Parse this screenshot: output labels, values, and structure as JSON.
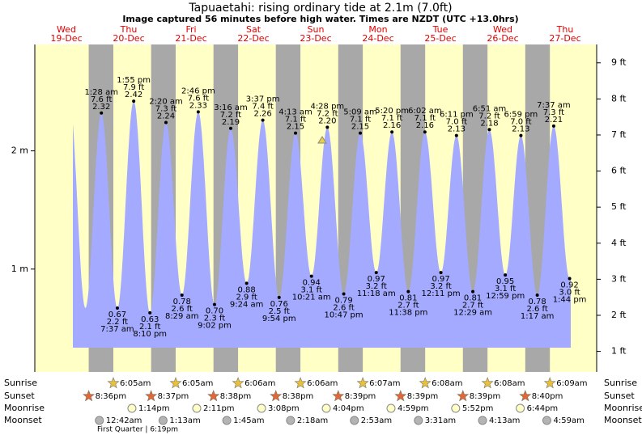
{
  "chart_data": {
    "type": "tide",
    "title": "Tapuaetahi: rising  ordinary tide at 2.1m (7.0ft)",
    "subtitle": "Image captured 56 minutes before high water. Times are NZDT (UTC +13.0hrs)",
    "ylim": [
      0.13,
      2.9
    ],
    "yticks": [
      {
        "value": 1,
        "label": "1 m"
      },
      {
        "value": 2,
        "label": "2 m"
      }
    ],
    "y2lim": [
      0.43,
      9.51
    ],
    "y2ticks": [
      {
        "value": 1,
        "label": "1 ft"
      },
      {
        "value": 2,
        "label": "2 ft"
      },
      {
        "value": 3,
        "label": "3 ft"
      },
      {
        "value": 4,
        "label": "4 ft"
      },
      {
        "value": 5,
        "label": "5 ft"
      },
      {
        "value": 6,
        "label": "6 ft"
      },
      {
        "value": 7,
        "label": "7 ft"
      },
      {
        "value": 8,
        "label": "8 ft"
      },
      {
        "value": 9,
        "label": "9 ft"
      }
    ],
    "row_labels": [
      "Sunrise",
      "Sunset",
      "Moonrise",
      "Moonset"
    ],
    "moon_phase": "First Quarter | 6:19pm",
    "days": [
      {
        "weekday": "Wed",
        "date": "19-Dec",
        "tides": [],
        "sunrise": null,
        "sunset": "8:36pm",
        "moonrise": null,
        "moonset": null
      },
      {
        "weekday": "Thu",
        "date": "20-Dec",
        "tides": [
          {
            "time": "1:28 am",
            "ft": "7.6 ft",
            "m": 2.32
          },
          {
            "time": "7:37 am",
            "ft": "2.2 ft",
            "m": 0.67
          },
          {
            "time": "1:55 pm",
            "ft": "7.9 ft",
            "m": 2.42
          },
          {
            "time": "8:10 pm",
            "ft": "2.1 ft",
            "m": 0.63
          }
        ],
        "sunrise": "6:05am",
        "sunset": "8:37pm",
        "moonrise": "1:14pm",
        "moonset": "12:42am"
      },
      {
        "weekday": "Fri",
        "date": "21-Dec",
        "tides": [
          {
            "time": "2:20 am",
            "ft": "7.3 ft",
            "m": 2.24
          },
          {
            "time": "8:29 am",
            "ft": "2.6 ft",
            "m": 0.78
          },
          {
            "time": "2:46 pm",
            "ft": "7.6 ft",
            "m": 2.33
          },
          {
            "time": "9:02 pm",
            "ft": "2.3 ft",
            "m": 0.7,
            "m_label": "0.70"
          }
        ],
        "sunrise": "6:05am",
        "sunset": "8:38pm",
        "moonrise": "2:11pm",
        "moonset": "1:13am"
      },
      {
        "weekday": "Sat",
        "date": "22-Dec",
        "tides": [
          {
            "time": "3:16 am",
            "ft": "7.2 ft",
            "m": 2.19
          },
          {
            "time": "9:24 am",
            "ft": "2.9 ft",
            "m": 0.88
          },
          {
            "time": "3:37 pm",
            "ft": "7.4 ft",
            "m": 2.26
          },
          {
            "time": "9:54 pm",
            "ft": "2.5 ft",
            "m": 0.76
          }
        ],
        "sunrise": "6:06am",
        "sunset": "8:38pm",
        "moonrise": "3:08pm",
        "moonset": "1:45am"
      },
      {
        "weekday": "Sun",
        "date": "23-Dec",
        "tides": [
          {
            "time": "4:13 am",
            "ft": "7.1 ft",
            "m": 2.15
          },
          {
            "time": "10:21 am",
            "ft": "3.1 ft",
            "m": 0.94
          },
          {
            "time": "4:28 pm",
            "ft": "7.2 ft",
            "m": 2.2,
            "m_label": "2.20"
          },
          {
            "time": "10:47 pm",
            "ft": "2.6 ft",
            "m": 0.79
          }
        ],
        "sunrise": "6:06am",
        "sunset": "8:39pm",
        "moonrise": "4:04pm",
        "moonset": "2:18am"
      },
      {
        "weekday": "Mon",
        "date": "24-Dec",
        "tides": [
          {
            "time": "5:09 am",
            "ft": "7.1 ft",
            "m": 2.15
          },
          {
            "time": "11:18 am",
            "ft": "3.2 ft",
            "m": 0.97
          },
          {
            "time": "5:20 pm",
            "ft": "7.1 ft",
            "m": 2.16
          },
          {
            "time": "11:38 pm",
            "ft": "2.7 ft",
            "m": 0.81
          }
        ],
        "sunrise": "6:07am",
        "sunset": "8:39pm",
        "moonrise": "4:59pm",
        "moonset": "2:53am"
      },
      {
        "weekday": "Tue",
        "date": "25-Dec",
        "tides": [
          {
            "time": "6:02 am",
            "ft": "7.1 ft",
            "m": 2.16
          },
          {
            "time": "12:11 pm",
            "ft": "3.2 ft",
            "m": 0.97
          },
          {
            "time": "6:11 pm",
            "ft": "7.0 ft",
            "m": 2.13
          }
        ],
        "sunrise": "6:08am",
        "sunset": "8:39pm",
        "moonrise": "5:52pm",
        "moonset": "3:31am"
      },
      {
        "weekday": "Wed",
        "date": "26-Dec",
        "tides": [
          {
            "time": "12:29 am",
            "ft": "2.7 ft",
            "m": 0.81
          },
          {
            "time": "6:51 am",
            "ft": "7.2 ft",
            "m": 2.18
          },
          {
            "time": "12:59 pm",
            "ft": "3.1 ft",
            "m": 0.95
          },
          {
            "time": "6:59 pm",
            "ft": "7.0 ft",
            "m": 2.13
          }
        ],
        "sunrise": "6:08am",
        "sunset": "8:40pm",
        "moonrise": "6:44pm",
        "moonset": "4:13am"
      },
      {
        "weekday": "Thu",
        "date": "27-Dec",
        "tides": [
          {
            "time": "1:17 am",
            "ft": "2.6 ft",
            "m": 0.78
          },
          {
            "time": "7:37 am",
            "ft": "7.3 ft",
            "m": 2.21
          },
          {
            "time": "1:44 pm",
            "ft": "3.0 ft",
            "m": 0.92
          }
        ],
        "sunrise": "6:09am",
        "sunset": null,
        "moonrise": null,
        "moonset": "4:59am"
      }
    ]
  }
}
